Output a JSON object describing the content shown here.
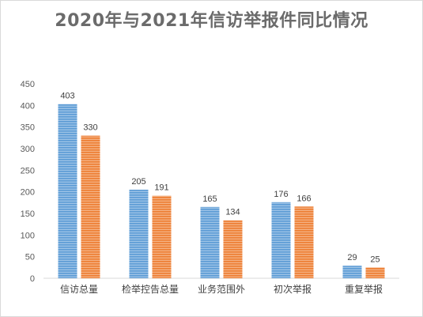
{
  "chart_data": {
    "type": "bar",
    "title": "2020年与2021年信访举报件同比情况",
    "categories": [
      "信访总量",
      "检举控告总量",
      "业务范围外",
      "初次举报",
      "重复举报"
    ],
    "series": [
      {
        "values": [
          403,
          205,
          165,
          176,
          29
        ],
        "color": "#5b9bd5"
      },
      {
        "values": [
          330,
          191,
          134,
          166,
          25
        ],
        "color": "#ed7d31"
      }
    ],
    "ylim": [
      0,
      450
    ],
    "yticks": [
      0,
      50,
      100,
      150,
      200,
      250,
      300,
      350,
      400,
      450
    ],
    "grid": false,
    "xlabel": "",
    "ylabel": ""
  }
}
